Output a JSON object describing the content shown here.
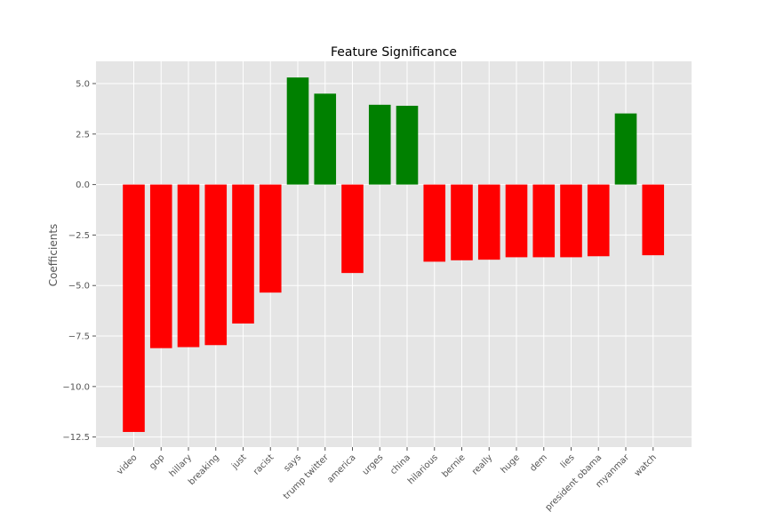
{
  "chart_data": {
    "type": "bar",
    "title": "Feature Significance",
    "xlabel": "",
    "ylabel": "Coefficients",
    "categories": [
      "video",
      "gop",
      "hillary",
      "breaking",
      "just",
      "racist",
      "says",
      "trump twitter",
      "america",
      "urges",
      "china",
      "hilarious",
      "bernie",
      "really",
      "huge",
      "dem",
      "lies",
      "president obama",
      "myanmar",
      "watch"
    ],
    "values": [
      -12.25,
      -8.1,
      -8.05,
      -7.95,
      -6.88,
      -5.35,
      5.3,
      4.5,
      -4.38,
      3.95,
      3.9,
      -3.82,
      -3.75,
      -3.72,
      -3.6,
      -3.6,
      -3.6,
      -3.55,
      3.52,
      -3.5
    ],
    "ylim": [
      -13.0,
      6.1
    ],
    "yticks": [
      5.0,
      2.5,
      0.0,
      -2.5,
      -5.0,
      -7.5,
      -10.0,
      -12.5
    ],
    "ytick_labels": [
      "5.0",
      "2.5",
      "0.0",
      "−2.5",
      "−5.0",
      "−7.5",
      "−10.0",
      "−12.5"
    ],
    "grid": true,
    "colors": {
      "positive": "#008000",
      "negative": "#ff0000",
      "background": "#e5e5e5",
      "grid": "#ffffff"
    }
  }
}
